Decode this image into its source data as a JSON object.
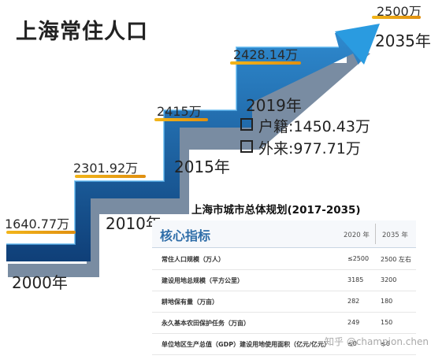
{
  "title": "上海常住人口",
  "chart_data": {
    "type": "line",
    "x": [
      "2000年",
      "2010年",
      "2015年",
      "2019年",
      "2035年"
    ],
    "values": [
      1640.77,
      2301.92,
      2415,
      2428.14,
      2500
    ],
    "value_labels": [
      "1640.77万",
      "2301.92万",
      "2415万",
      "2428.14万",
      "2500万"
    ],
    "year_labels": [
      "2000年",
      "2010年",
      "2015年",
      "2019年",
      "2035年"
    ]
  },
  "breakdown": {
    "year": "2019年",
    "items": [
      {
        "label": "户籍:1450.43万"
      },
      {
        "label": "外来:977.71万"
      }
    ]
  },
  "plan": {
    "title": "上海市城市总体规划(2017-2035)",
    "heading": "核心指标",
    "columns": [
      "2020 年",
      "2035 年"
    ],
    "rows": [
      {
        "name": "常住人口规模（万人）",
        "v2020": "≤2500",
        "v2035": "2500 左右"
      },
      {
        "name": "建设用地总规模（平方公里）",
        "v2020": "3185",
        "v2035": "3200"
      },
      {
        "name": "耕地保有量（万亩）",
        "v2020": "282",
        "v2035": "180"
      },
      {
        "name": "永久基本农田保护任务（万亩）",
        "v2020": "249",
        "v2035": "150"
      },
      {
        "name": "单位地区生产总值（GDP）建设用地使用面积（亿元/亿元）",
        "v2020": "≤0",
        "v2035": "≤6"
      }
    ]
  },
  "watermark": "知乎 @champion.chen",
  "colors": {
    "stair": "#1d6db8",
    "arrow": "#2a9be0",
    "bar": "#f2b51a"
  }
}
